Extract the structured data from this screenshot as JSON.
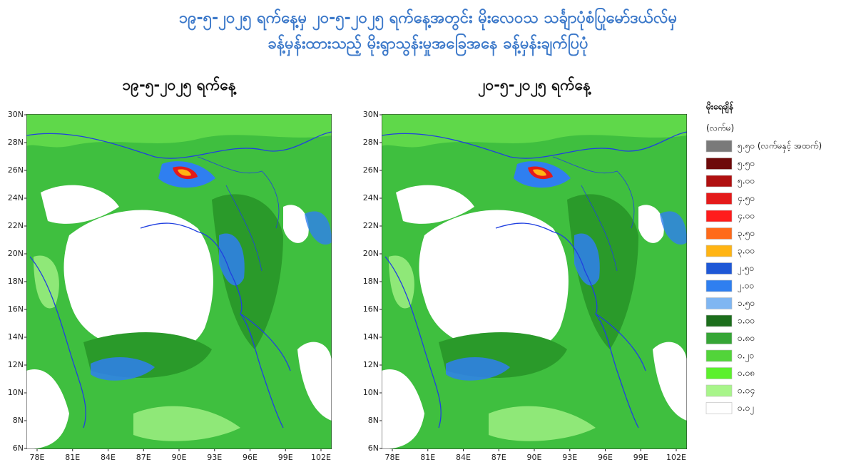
{
  "header": {
    "title": [
      "၁၉-၅-၂၀၂၅ ရက်နေ့မှ ၂၀-၅-၂၀၂၅ ရက်နေ့အတွင်း မိုးလေဝသ သင်္ချာပုံစံပြုမော်ဒယ်လ်မှ",
      "ခန့်မှန်းထားသည့် မိုးရွာသွန်းမှုအခြေအနေ ခန့်မှန်းချက်ပြပုံ"
    ]
  },
  "panels": [
    {
      "title": "၁၉-၅-၂၀၂၅ ရက်နေ့"
    },
    {
      "title": "၂၀-၅-၂၀၂၅ ရက်နေ့"
    }
  ],
  "lat_labels": [
    "30N",
    "28N",
    "26N",
    "24N",
    "22N",
    "20N",
    "18N",
    "16N",
    "14N",
    "12N",
    "10N",
    "8N",
    "6N"
  ],
  "lon_labels": [
    "78E",
    "81E",
    "84E",
    "87E",
    "90E",
    "93E",
    "96E",
    "99E",
    "102E"
  ],
  "legend": {
    "title": "မိုးရေချိန်",
    "unit": "(လက်မ)",
    "items": [
      {
        "label": "၅.၅၀ (လက်မနှင့် အထက်)",
        "color": "#7a7a7a"
      },
      {
        "label": "၅.၅၀",
        "color": "#6e0a0a"
      },
      {
        "label": "၅.၀၀",
        "color": "#b01010"
      },
      {
        "label": "၄.၅၀",
        "color": "#e41a1a"
      },
      {
        "label": "၄.၀၀",
        "color": "#ff1c1c"
      },
      {
        "label": "၃.၅၀",
        "color": "#ff6a1a"
      },
      {
        "label": "၃.၀၀",
        "color": "#ffb414"
      },
      {
        "label": "၂.၅၀",
        "color": "#1f58d6"
      },
      {
        "label": "၂.၀၀",
        "color": "#2f7ff0"
      },
      {
        "label": "၁.၅၀",
        "color": "#7fb6f2"
      },
      {
        "label": "၁.၀၀",
        "color": "#1c6e1c"
      },
      {
        "label": "၀.၈၀",
        "color": "#36a536"
      },
      {
        "label": "၀.၂၀",
        "color": "#52d43a"
      },
      {
        "label": "၀.၀၈",
        "color": "#5cf02c"
      },
      {
        "label": "၀.၀၄",
        "color": "#a8f58a"
      },
      {
        "label": "၀.၀၂",
        "color": "#ffffff"
      }
    ]
  }
}
